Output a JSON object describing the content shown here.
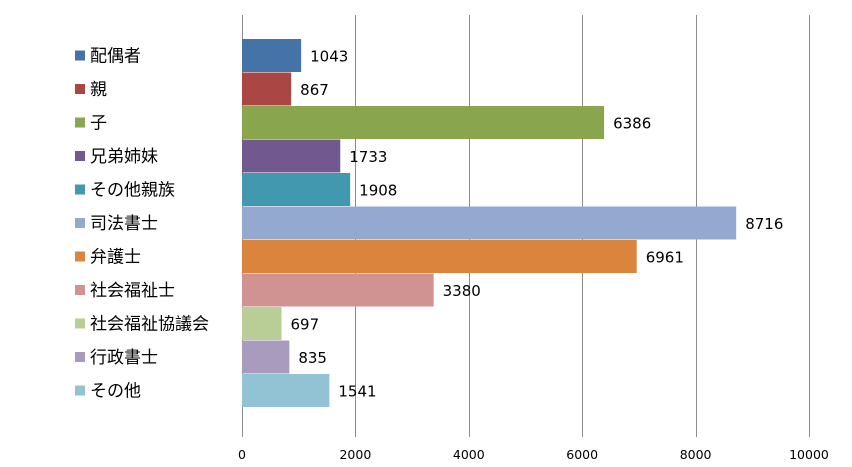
{
  "chart_data": {
    "type": "bar",
    "orientation": "horizontal",
    "categories": [
      "配偶者",
      "親",
      "子",
      "兄弟姉妹",
      "その他親族",
      "司法書士",
      "弁護士",
      "社会福祉士",
      "社会福祉協議会",
      "行政書士",
      "その他"
    ],
    "values": [
      1043,
      867,
      6386,
      1733,
      1908,
      8716,
      6961,
      3380,
      697,
      835,
      1541
    ],
    "colors": [
      "#4572a7",
      "#aa4643",
      "#89a54e",
      "#71588f",
      "#4198af",
      "#93a9cf",
      "#db843d",
      "#d19392",
      "#b9cd96",
      "#a99bbd",
      "#92c3d4"
    ],
    "xlim": [
      0,
      10000
    ],
    "xticks": [
      0,
      2000,
      4000,
      6000,
      8000,
      10000
    ],
    "grid": true,
    "legend": "left",
    "title": "",
    "xlabel": "",
    "ylabel": ""
  }
}
